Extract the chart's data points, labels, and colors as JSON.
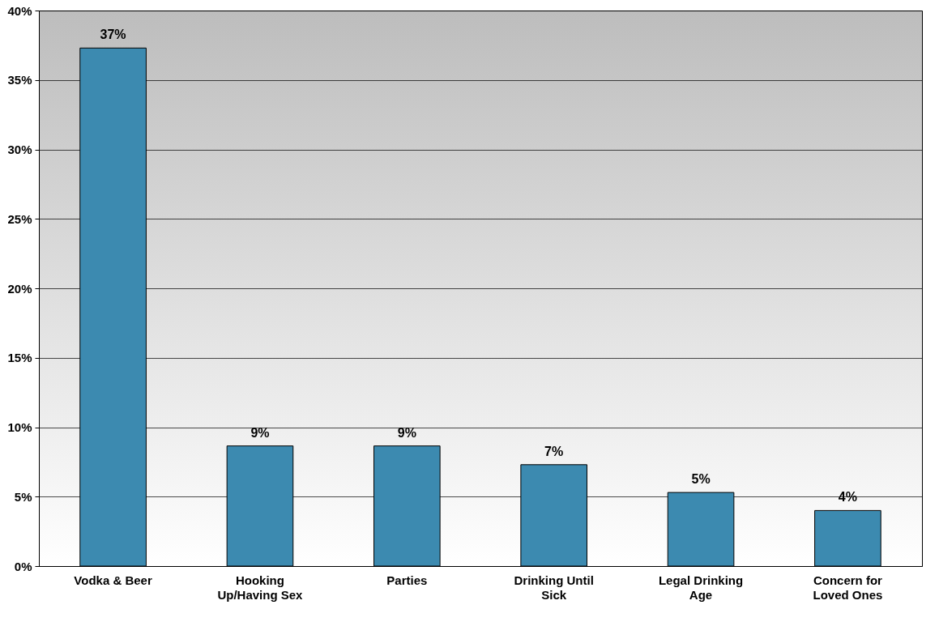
{
  "chart_data": {
    "type": "bar",
    "categories": [
      "Vodka & Beer",
      "Hooking Up/Having Sex",
      "Parties",
      "Drinking Until Sick",
      "Legal Drinking Age",
      "Concern for Loved Ones"
    ],
    "values": [
      37.3,
      8.65,
      8.65,
      7.3,
      5.3,
      4.0
    ],
    "value_labels": [
      "37%",
      "9%",
      "9%",
      "7%",
      "5%",
      "4%"
    ],
    "color": "#3c8ab0",
    "ylim": [
      0,
      40
    ],
    "yticks": [
      {
        "value": 0,
        "label": "0%"
      },
      {
        "value": 5,
        "label": "5%"
      },
      {
        "value": 10,
        "label": "10%"
      },
      {
        "value": 15,
        "label": "15%"
      },
      {
        "value": 20,
        "label": "20%"
      },
      {
        "value": 25,
        "label": "25%"
      },
      {
        "value": 30,
        "label": "30%"
      },
      {
        "value": 35,
        "label": "35%"
      },
      {
        "value": 40,
        "label": "40%"
      }
    ],
    "grid": "y"
  }
}
